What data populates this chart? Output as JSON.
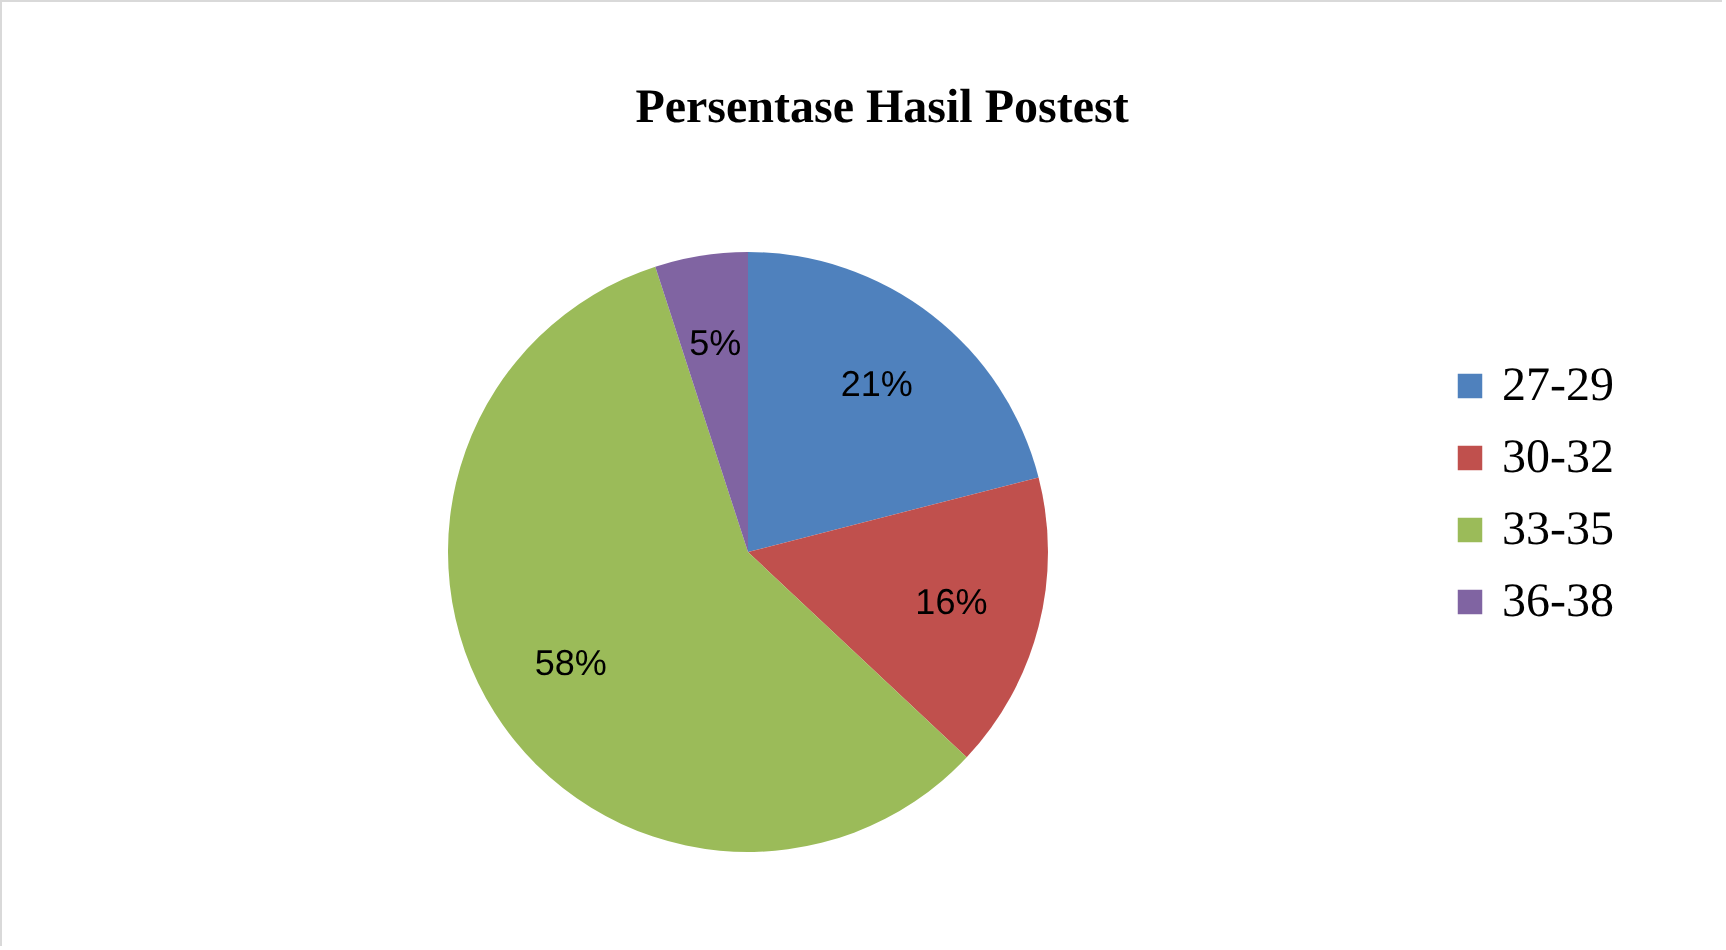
{
  "chart_data": {
    "type": "pie",
    "title": "Persentase Hasil Postest",
    "categories": [
      "27-29",
      "30-32",
      "33-35",
      "36-38"
    ],
    "values": [
      21,
      16,
      58,
      5
    ],
    "colors": [
      "#4f81bd",
      "#c0504d",
      "#9bbb59",
      "#8064a2"
    ],
    "value_labels": [
      "21%",
      "16%",
      "58%",
      "5%"
    ],
    "legend": "right"
  }
}
